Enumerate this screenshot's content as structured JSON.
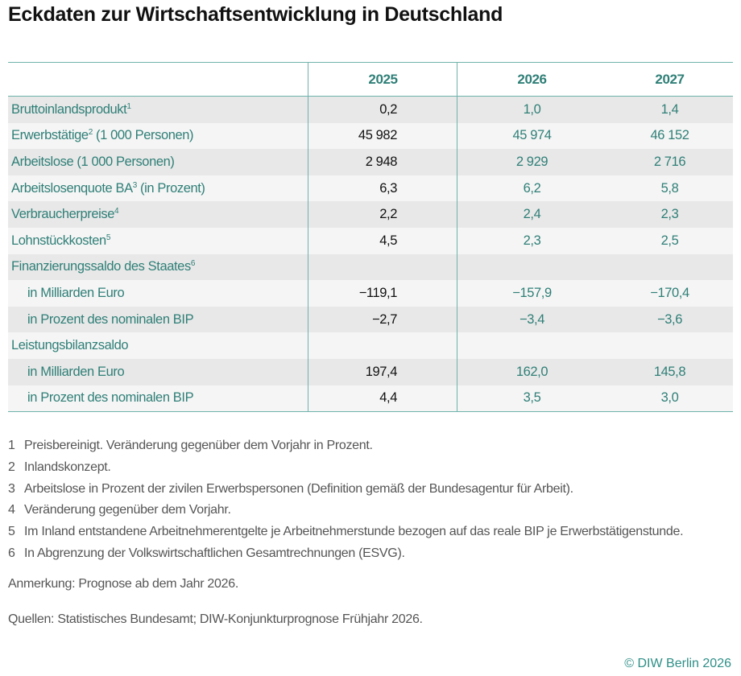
{
  "title": "Eckdaten zur Wirtschaftsentwicklung in Deutschland",
  "table": {
    "columns": [
      "",
      "2025",
      "2026",
      "2027"
    ],
    "rows": [
      {
        "label": "Bruttoinlandsprodukt",
        "sup": "1",
        "suffix": "",
        "indent": false,
        "values": [
          "0,2",
          "1,0",
          "1,4"
        ]
      },
      {
        "label": "Erwerbstätige",
        "sup": "2",
        "suffix": " (1 000 Personen)",
        "indent": false,
        "values": [
          "45 982",
          "45 974",
          "46 152"
        ]
      },
      {
        "label": "Arbeitslose (1 000 Personen)",
        "sup": "",
        "suffix": "",
        "indent": false,
        "values": [
          "2 948",
          "2 929",
          "2 716"
        ]
      },
      {
        "label": "Arbeitslosenquote BA",
        "sup": "3",
        "suffix": " (in Prozent)",
        "indent": false,
        "values": [
          "6,3",
          "6,2",
          "5,8"
        ]
      },
      {
        "label": "Verbraucherpreise",
        "sup": "4",
        "suffix": "",
        "indent": false,
        "values": [
          "2,2",
          "2,4",
          "2,3"
        ]
      },
      {
        "label": "Lohnstückkosten",
        "sup": "5",
        "suffix": "",
        "indent": false,
        "values": [
          "4,5",
          "2,3",
          "2,5"
        ]
      },
      {
        "label": "Finanzierungssaldo des Staates",
        "sup": "6",
        "suffix": "",
        "indent": false,
        "values": [
          "",
          "",
          ""
        ]
      },
      {
        "label": "in Milliarden Euro",
        "sup": "",
        "suffix": "",
        "indent": true,
        "values": [
          "−119,1",
          "−157,9",
          "−170,4"
        ]
      },
      {
        "label": "in Prozent des nominalen BIP",
        "sup": "",
        "suffix": "",
        "indent": true,
        "values": [
          "−2,7",
          "−3,4",
          "−3,6"
        ]
      },
      {
        "label": "Leistungsbilanzsaldo",
        "sup": "",
        "suffix": "",
        "indent": false,
        "values": [
          "",
          "",
          ""
        ]
      },
      {
        "label": "in Milliarden Euro",
        "sup": "",
        "suffix": "",
        "indent": true,
        "values": [
          "197,4",
          "162,0",
          "145,8"
        ]
      },
      {
        "label": "in Prozent des nominalen BIP",
        "sup": "",
        "suffix": "",
        "indent": true,
        "values": [
          "4,4",
          "3,5",
          "3,0"
        ]
      }
    ]
  },
  "footnotes": [
    {
      "num": "1",
      "text": "Preisbereinigt. Veränderung gegenüber dem Vorjahr in Prozent."
    },
    {
      "num": "2",
      "text": "Inlandskonzept."
    },
    {
      "num": "3",
      "text": "Arbeitslose in Prozent der zivilen Erwerbspersonen (Definition gemäß der Bundesagentur für Arbeit)."
    },
    {
      "num": "4",
      "text": "Veränderung gegenüber dem Vorjahr."
    },
    {
      "num": "5",
      "text": "Im Inland entstandene Arbeitnehmerentgelte je Arbeitnehmerstunde bezogen auf das reale BIP je Erwerbstätigenstunde."
    },
    {
      "num": "6",
      "text": "In Abgrenzung der Volkswirtschaftlichen Gesamtrechnungen (ESVG)."
    }
  ],
  "remark": "Anmerkung: Prognose ab dem Jahr 2026.",
  "sources": "Quellen: Statistisches Bundesamt; DIW-Konjunkturprognose Frühjahr 2026.",
  "copyright": "© DIW Berlin 2026",
  "colors": {
    "accent": "#2f7f77",
    "rule": "#6fb3ab",
    "row_dark": "#e8e8e8",
    "row_light": "#f5f5f5"
  }
}
